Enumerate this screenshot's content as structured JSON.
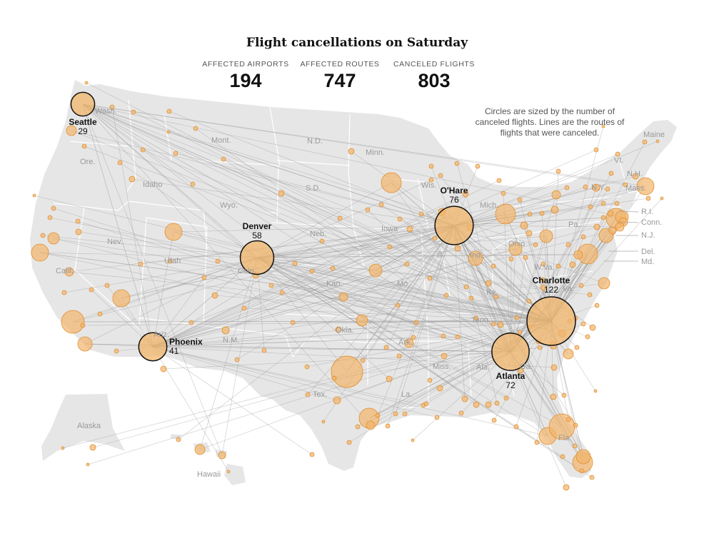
{
  "title": "Flight cancellations on Saturday",
  "stats": [
    {
      "label": "AFFECTED AIRPORTS",
      "value": "194"
    },
    {
      "label": "AFFECTED ROUTES",
      "value": "747"
    },
    {
      "label": "CANCELED FLIGHTS",
      "value": "803"
    }
  ],
  "note": "Circles are sized by the number of canceled flights. Lines are the routes of flights that were canceled.",
  "colors": {
    "land": "#e6e6e6",
    "border": "#ffffff",
    "route": "#9a9a9a",
    "bubble": "#f2b56b",
    "bubble_stroke": "#e08e2e",
    "hub_stroke": "#111111"
  },
  "state_labels": [
    "Wash.",
    "Ore.",
    "Idaho",
    "Mont.",
    "Wyo.",
    "Nev.",
    "Calif.",
    "Utah",
    "Colo.",
    "Ariz.",
    "N.M.",
    "N.D.",
    "S.D.",
    "Neb.",
    "Kan.",
    "Okla.",
    "Tex.",
    "Minn.",
    "Iowa",
    "Mo.",
    "Ark.",
    "La.",
    "Wis.",
    "Ill.",
    "Mich.",
    "Ind.",
    "Ohio",
    "Ky.",
    "Tenn.",
    "Miss.",
    "Ala.",
    "Ga.",
    "Fla.",
    "W.Va.",
    "Va.",
    "Pa.",
    "N.Y.",
    "Maine",
    "Vt.",
    "N.H.",
    "Mass.",
    "R.I.",
    "Conn.",
    "N.J.",
    "Del.",
    "Md.",
    "Alaska",
    "Hawaii"
  ],
  "hubs": [
    {
      "name": "Seattle",
      "count": 29
    },
    {
      "name": "Denver",
      "count": 58
    },
    {
      "name": "O'Hare",
      "count": 76
    },
    {
      "name": "Phoenix",
      "count": 41
    },
    {
      "name": "Charlotte",
      "count": 122
    },
    {
      "name": "Atlanta",
      "count": 72
    }
  ]
}
